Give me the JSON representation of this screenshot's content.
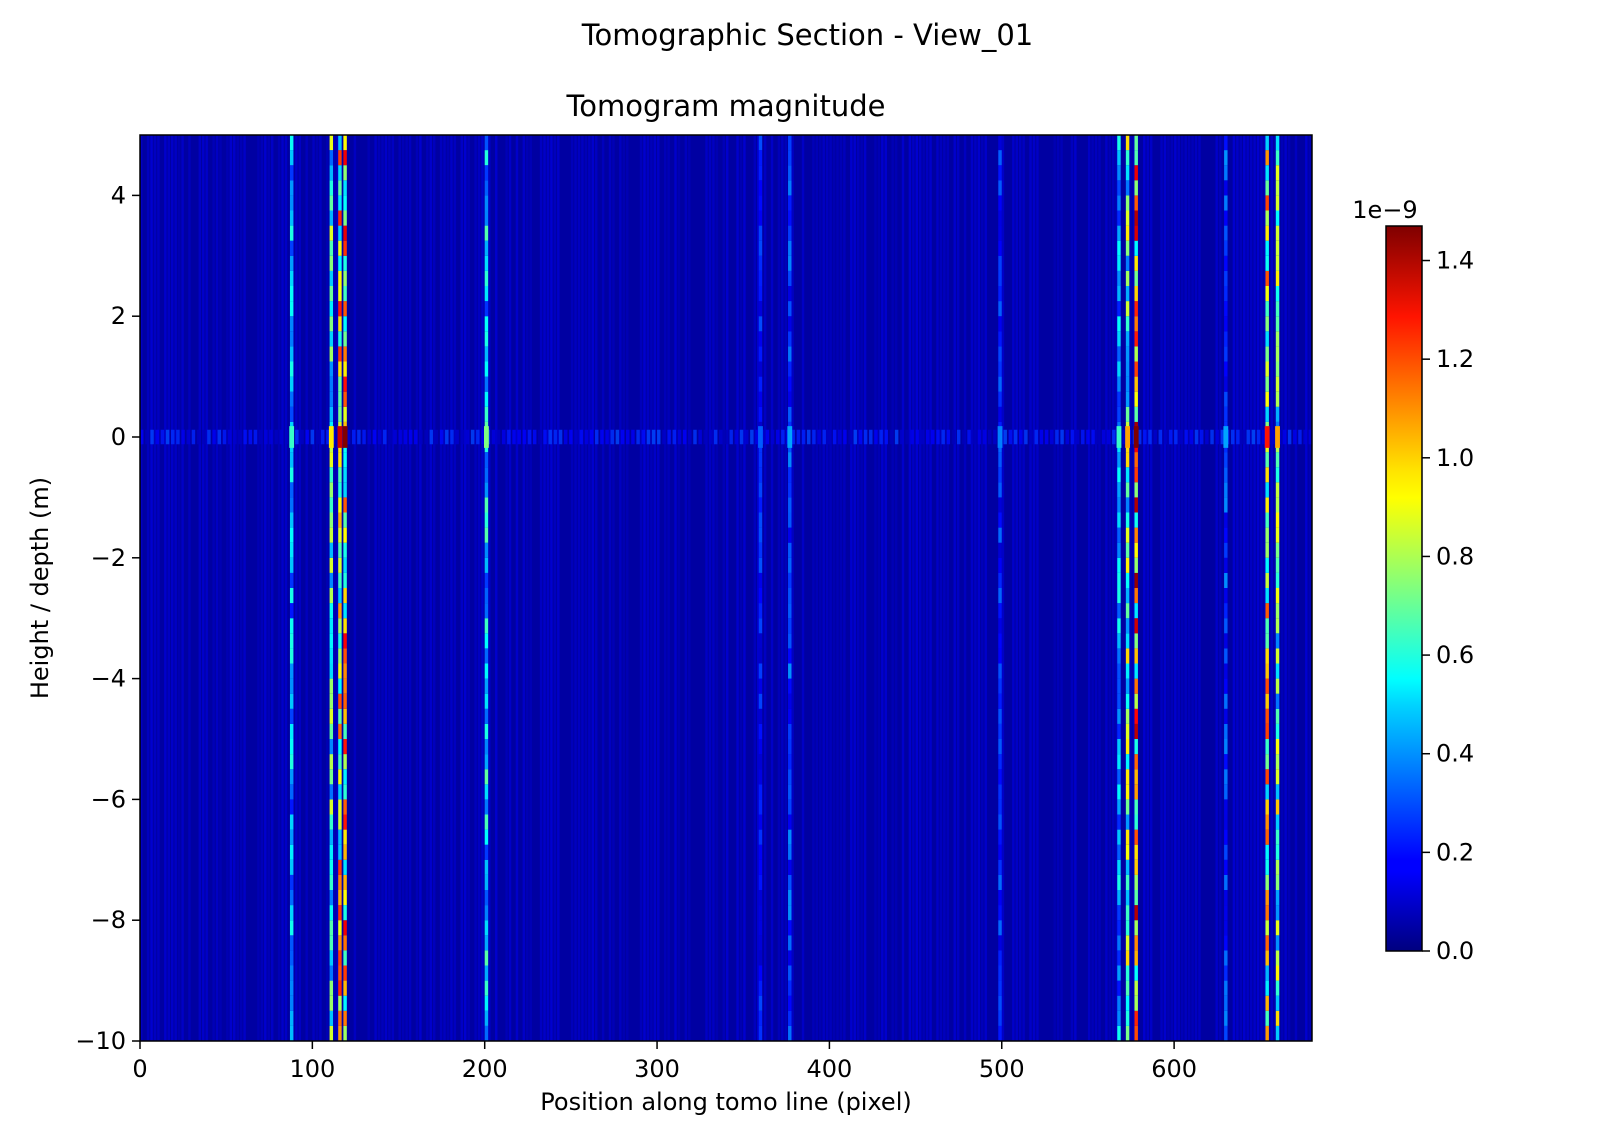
{
  "figure": {
    "suptitle": "Tomographic Section - View_01"
  },
  "chart_data": {
    "type": "heatmap",
    "title": "Tomogram magnitude",
    "xlabel": "Position along tomo line (pixel)",
    "ylabel": "Height / depth (m)",
    "xlim": [
      0,
      680
    ],
    "ylim": [
      -10,
      5
    ],
    "xticks": [
      0,
      100,
      200,
      300,
      400,
      500,
      600
    ],
    "yticks": [
      -10,
      -8,
      -6,
      -4,
      -2,
      0,
      2,
      4
    ],
    "colormap": "jet",
    "colorbar": {
      "min": 0.0,
      "max": 1.47,
      "ticks": [
        "0.0",
        "0.2",
        "0.4",
        "0.6",
        "0.8",
        "1.0",
        "1.2",
        "1.4"
      ],
      "tick_values": [
        0.0,
        0.2,
        0.4,
        0.6,
        0.8,
        1.0,
        1.2,
        1.4
      ],
      "offset_text": "1e−9"
    },
    "background_level": 0.05,
    "bright_columns": [
      {
        "x": 88,
        "peak": 0.6
      },
      {
        "x": 111,
        "peak": 0.9
      },
      {
        "x": 116,
        "peak": 1.3
      },
      {
        "x": 119,
        "peak": 1.4
      },
      {
        "x": 201,
        "peak": 0.7
      },
      {
        "x": 360,
        "peak": 0.3
      },
      {
        "x": 377,
        "peak": 0.4
      },
      {
        "x": 499,
        "peak": 0.35
      },
      {
        "x": 568,
        "peak": 0.6
      },
      {
        "x": 573,
        "peak": 1.0
      },
      {
        "x": 578,
        "peak": 1.47
      },
      {
        "x": 630,
        "peak": 0.4
      },
      {
        "x": 654,
        "peak": 1.2
      },
      {
        "x": 660,
        "peak": 1.0
      }
    ],
    "horizontal_feature": {
      "y": 0,
      "peak": 0.5
    }
  }
}
